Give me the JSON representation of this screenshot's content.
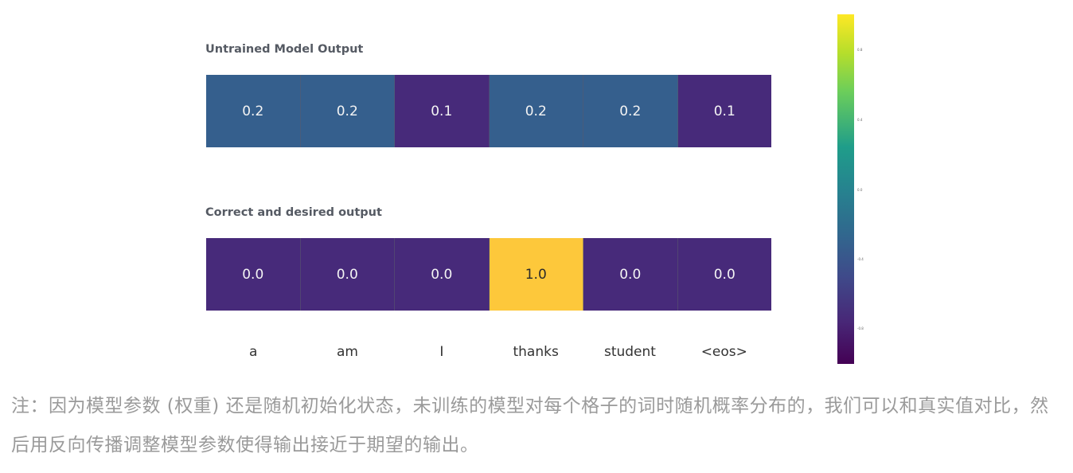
{
  "diagram": {
    "untrained_title": "Untrained Model Output",
    "correct_title": "Correct and desired output",
    "words": [
      "a",
      "am",
      "I",
      "thanks",
      "student",
      "<eos>"
    ],
    "untrained": [
      {
        "label": "0.2",
        "color": "#355f8d"
      },
      {
        "label": "0.2",
        "color": "#355f8d"
      },
      {
        "label": "0.1",
        "color": "#472a7a"
      },
      {
        "label": "0.2",
        "color": "#355f8d"
      },
      {
        "label": "0.2",
        "color": "#355f8d"
      },
      {
        "label": "0.1",
        "color": "#472a7a"
      }
    ],
    "correct": [
      {
        "label": "0.0",
        "color": "#472a7a"
      },
      {
        "label": "0.0",
        "color": "#472a7a"
      },
      {
        "label": "0.0",
        "color": "#472a7a"
      },
      {
        "label": "1.0",
        "color": "#fdc83b"
      },
      {
        "label": "0.0",
        "color": "#472a7a"
      },
      {
        "label": "0.0",
        "color": "#472a7a"
      }
    ],
    "colorbar_ticks": [
      "0.8",
      "0.4",
      "0.0",
      "-0.4",
      "-0.8"
    ]
  },
  "caption": "注：因为模型参数 (权重) 还是随机初始化状态，未训练的模型对每个格子的词时随机概率分布的，我们可以和真实值对比，然后用反向传播调整模型参数使得输出接近于期望的输出。"
}
